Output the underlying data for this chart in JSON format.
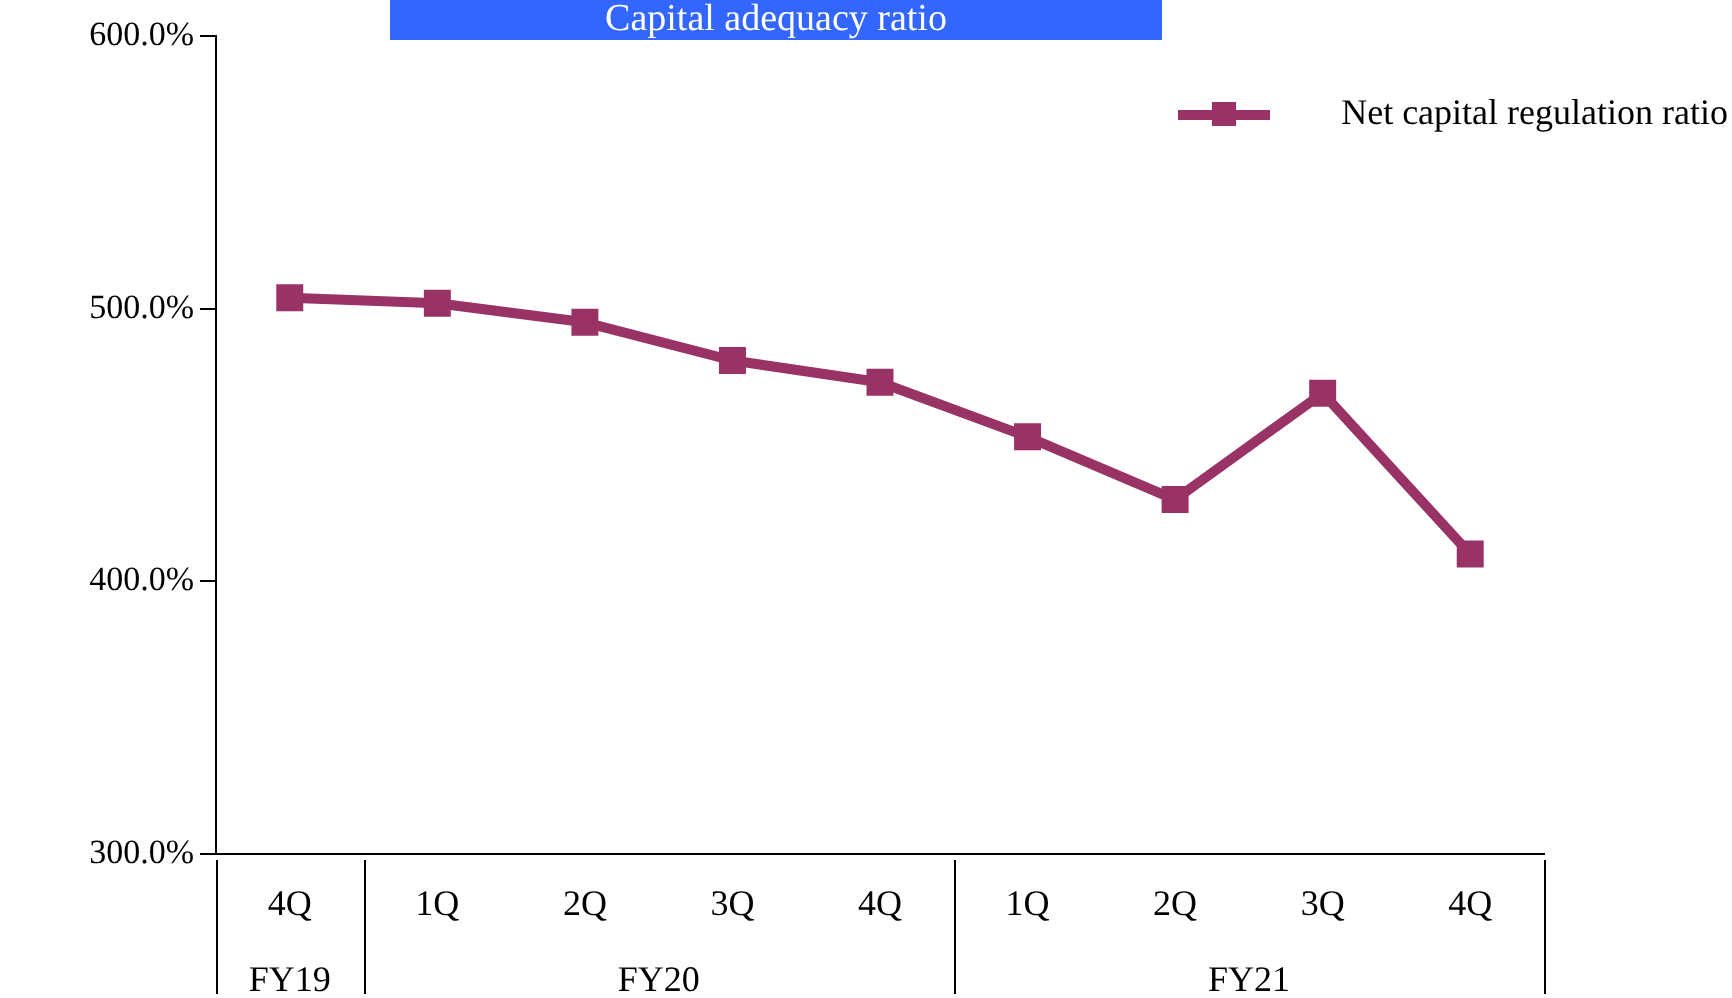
{
  "chart_data": {
    "type": "line",
    "title": "Capital adequacy ratio",
    "categories": [
      "4Q",
      "1Q",
      "2Q",
      "3Q",
      "4Q",
      "1Q",
      "2Q",
      "3Q",
      "4Q"
    ],
    "series": [
      {
        "name": "Net capital regulation ratio",
        "color": "#993366",
        "values": [
          504,
          502,
          495,
          481,
          473,
          453,
          430,
          469,
          410
        ]
      }
    ],
    "ylim": [
      300,
      600
    ],
    "yticks": [
      {
        "value": 300,
        "label": "300.0%"
      },
      {
        "value": 400,
        "label": "400.0%"
      },
      {
        "value": 500,
        "label": "500.0%"
      },
      {
        "value": 600,
        "label": "600.0%"
      }
    ],
    "annotations": [
      "FY19",
      "FY20",
      "FY21"
    ],
    "legend": "top right",
    "marker": "square",
    "line_style": "solid"
  }
}
